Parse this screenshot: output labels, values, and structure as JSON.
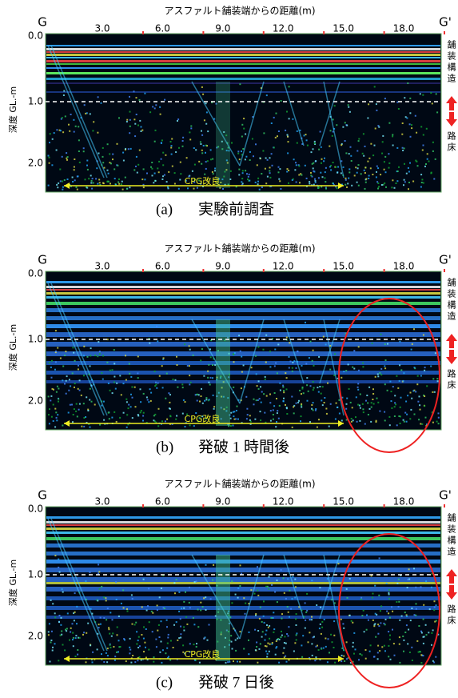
{
  "figure": {
    "panels": [
      {
        "x_axis_title": "アスファルト舗装端からの距離(m)",
        "left_marker": "G",
        "right_marker": "G'",
        "x_ticks": [
          "3.0",
          "6.0",
          "9.0",
          "12.0",
          "15.0",
          "18.0"
        ],
        "y_axis_title": "深度 GL.-m",
        "y_ticks": [
          "0.0",
          "1.0",
          "2.0"
        ],
        "region_label": "CPG改良",
        "side_upper": "舗装構造",
        "side_lower": "路床",
        "caption_id": "(a)",
        "caption": "実験前調査",
        "highlight": false
      },
      {
        "x_axis_title": "アスファルト舗装端からの距離(m)",
        "left_marker": "G",
        "right_marker": "G'",
        "x_ticks": [
          "3.0",
          "6.0",
          "9.0",
          "12.0",
          "15.0",
          "18.0"
        ],
        "y_axis_title": "深度 GL.-m",
        "y_ticks": [
          "0.0",
          "1.0",
          "2.0"
        ],
        "region_label": "CPG改良",
        "side_upper": "舗装構造",
        "side_lower": "路床",
        "caption_id": "(b)",
        "caption": "発破 1 時間後",
        "highlight": true
      },
      {
        "x_axis_title": "アスファルト舗装端からの距離(m)",
        "left_marker": "G",
        "right_marker": "G'",
        "x_ticks": [
          "3.0",
          "6.0",
          "9.0",
          "12.0",
          "15.0",
          "18.0"
        ],
        "y_axis_title": "深度 GL.-m",
        "y_ticks": [
          "0.0",
          "1.0",
          "2.0"
        ],
        "region_label": "CPG改良",
        "side_upper": "舗装構造",
        "side_lower": "路床",
        "caption_id": "(c)",
        "caption": "発破 7 日後",
        "highlight": true
      }
    ]
  }
}
